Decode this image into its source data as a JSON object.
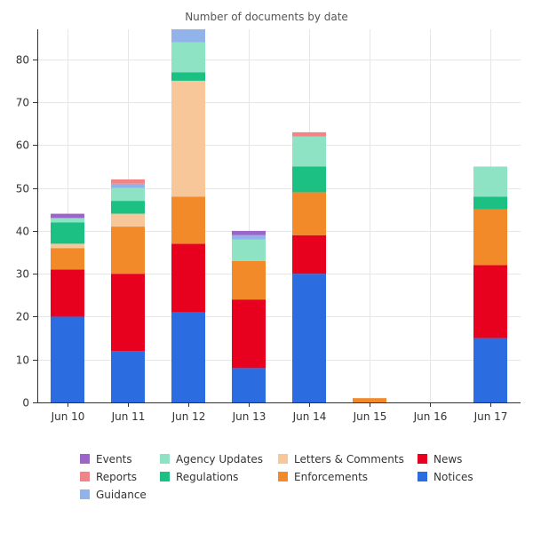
{
  "chart_data": {
    "type": "bar",
    "stacked": true,
    "title": "Number of documents by date",
    "xlabel": "",
    "ylabel": "",
    "ylim": [
      0,
      87
    ],
    "yticks": [
      0,
      10,
      20,
      30,
      40,
      50,
      60,
      70,
      80
    ],
    "grid": true,
    "legend_position": "bottom",
    "categories": [
      "Jun 10",
      "Jun 11",
      "Jun 12",
      "Jun 13",
      "Jun 14",
      "Jun 15",
      "Jun 16",
      "Jun 17"
    ],
    "series": [
      {
        "name": "Notices",
        "color": "#2b6de0",
        "values": [
          20,
          12,
          21,
          8,
          30,
          0,
          0,
          15
        ]
      },
      {
        "name": "News",
        "color": "#e8001f",
        "values": [
          11,
          18,
          16,
          16,
          9,
          0,
          0,
          17
        ]
      },
      {
        "name": "Enforcements",
        "color": "#f38a2a",
        "values": [
          5,
          11,
          11,
          9,
          10,
          1,
          0,
          13
        ]
      },
      {
        "name": "Letters & Comments",
        "color": "#f8c799",
        "values": [
          1,
          3,
          27,
          0,
          0,
          0,
          0,
          0
        ]
      },
      {
        "name": "Regulations",
        "color": "#1cc083",
        "values": [
          5,
          3,
          2,
          0,
          6,
          0,
          0,
          3
        ]
      },
      {
        "name": "Agency Updates",
        "color": "#8de3c3",
        "values": [
          1,
          3,
          7,
          5,
          7,
          0,
          0,
          7
        ]
      },
      {
        "name": "Guidance",
        "color": "#91b3ea",
        "values": [
          0,
          1,
          3,
          1,
          0,
          0,
          0,
          0
        ]
      },
      {
        "name": "Reports",
        "color": "#f08486",
        "values": [
          0,
          1,
          0,
          0,
          1,
          0,
          0,
          0
        ]
      },
      {
        "name": "Events",
        "color": "#9b65c9",
        "values": [
          1,
          0,
          0,
          1,
          0,
          0,
          0,
          0
        ]
      }
    ],
    "legend_order": [
      "Events",
      "Agency Updates",
      "Letters & Comments",
      "News",
      "Reports",
      "Regulations",
      "Enforcements",
      "Notices",
      "Guidance"
    ]
  }
}
